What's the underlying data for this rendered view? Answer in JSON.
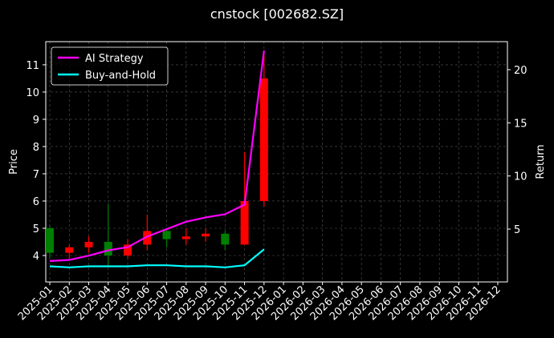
{
  "chart_data": {
    "type": "candlestick",
    "title": "cnstock [002682.SZ]",
    "ylabel": "Price",
    "y2label": "Return",
    "x": [
      "2025-01",
      "2025-02",
      "2025-03",
      "2025-04",
      "2025-05",
      "2025-06",
      "2025-07",
      "2025-08",
      "2025-09",
      "2025-10",
      "2025-11",
      "2025-12"
    ],
    "open": [
      5.0,
      4.1,
      4.3,
      4.5,
      4.0,
      4.4,
      4.9,
      4.6,
      4.7,
      4.8,
      4.4,
      6.0
    ],
    "high": [
      5.1,
      4.4,
      4.7,
      5.9,
      4.6,
      5.5,
      5.0,
      5.0,
      5.0,
      4.9,
      7.8,
      11.4
    ],
    "low": [
      3.9,
      3.9,
      4.1,
      3.6,
      3.9,
      4.2,
      4.3,
      4.4,
      4.5,
      4.2,
      4.4,
      5.8
    ],
    "close": [
      4.1,
      4.3,
      4.5,
      4.0,
      4.4,
      4.9,
      4.6,
      4.7,
      4.8,
      4.4,
      6.0,
      10.5
    ],
    "up_color": "#ff0000",
    "down_color": "#008000",
    "series": [
      {
        "name": "AI Strategy",
        "color": "#ff00ff",
        "axis": "y2",
        "values": [
          2.0,
          2.1,
          2.5,
          3.0,
          3.3,
          4.3,
          5.0,
          5.7,
          6.1,
          6.4,
          7.3,
          21.8
        ]
      },
      {
        "name": "Buy-and-Hold",
        "color": "#00ffff",
        "axis": "y2",
        "values": [
          1.5,
          1.4,
          1.5,
          1.5,
          1.5,
          1.6,
          1.6,
          1.5,
          1.5,
          1.4,
          1.6,
          3.1
        ]
      }
    ],
    "ylim": [
      3.03,
      11.85
    ],
    "yticks": [
      4,
      5,
      6,
      7,
      8,
      9,
      10,
      11
    ],
    "y2lim": [
      0.03,
      22.64
    ],
    "y2ticks": [
      5,
      10,
      15,
      20
    ],
    "xticks": [
      "2025-01",
      "2025-02",
      "2025-03",
      "2025-04",
      "2025-05",
      "2025-06",
      "2025-07",
      "2025-08",
      "2025-09",
      "2025-10",
      "2025-11",
      "2025-12",
      "2026-01",
      "2026-02",
      "2026-03",
      "2026-04",
      "2026-05",
      "2026-06",
      "2026-07",
      "2026-08",
      "2026-09",
      "2026-10",
      "2026-11",
      "2026-12"
    ],
    "grid": true,
    "legend": "upper left"
  }
}
